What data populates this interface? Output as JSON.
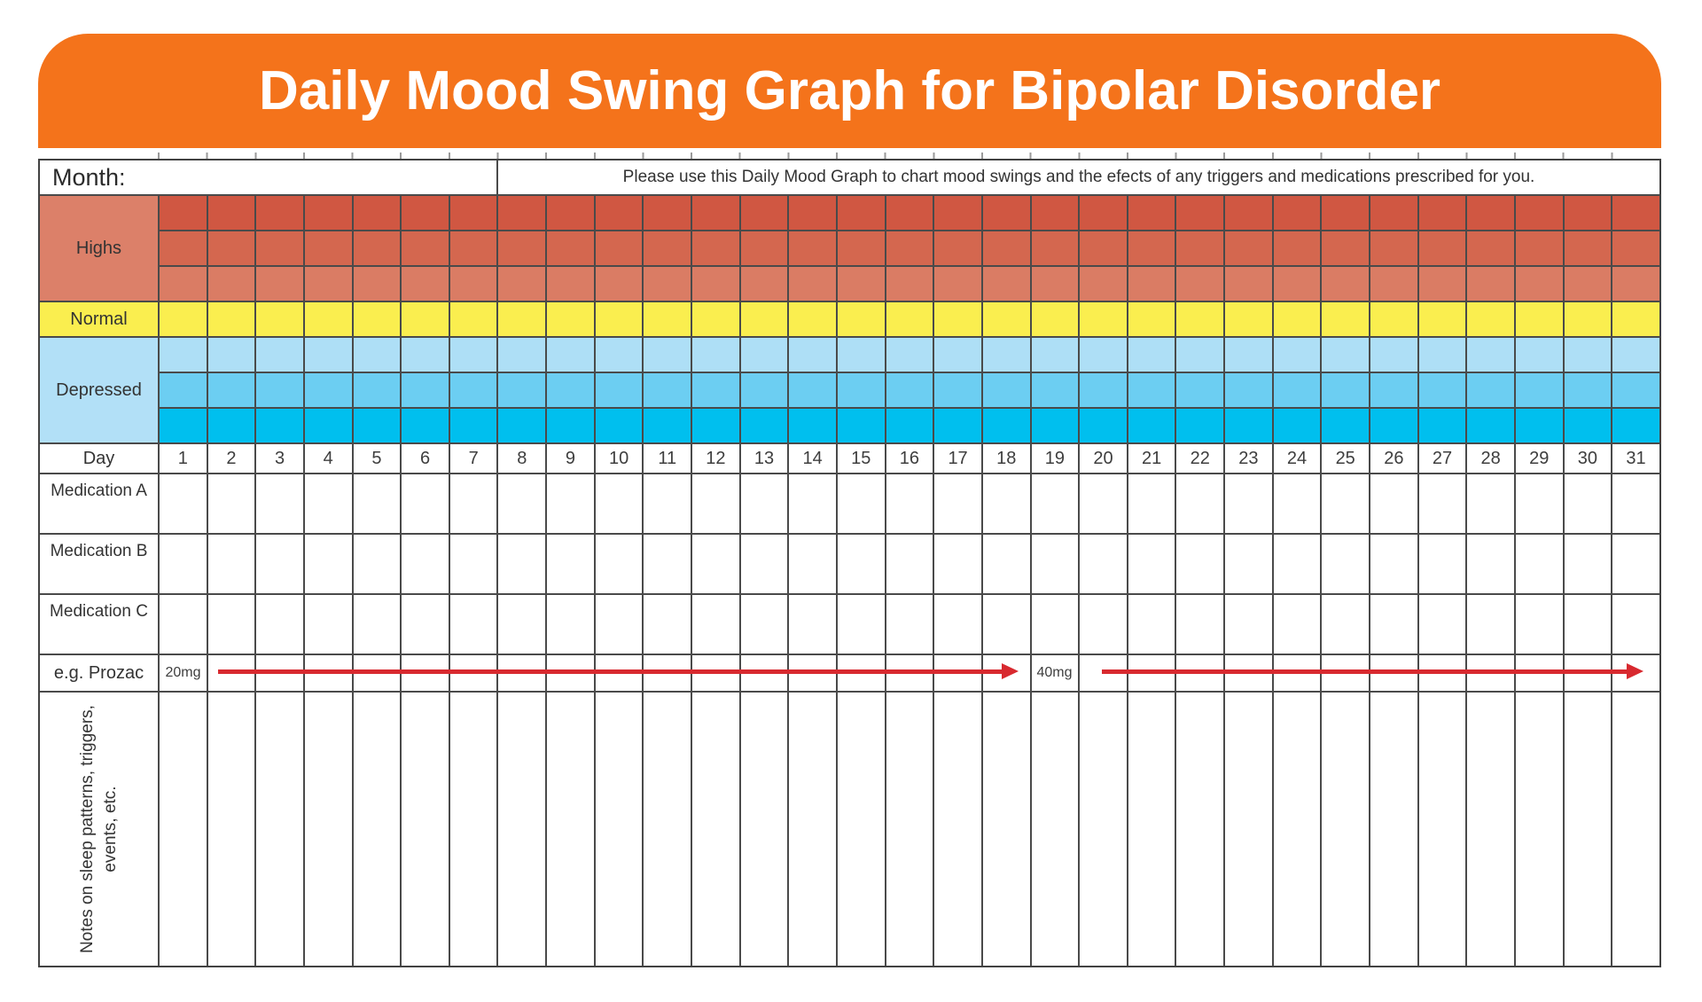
{
  "header": {
    "title": "Daily Mood Swing Graph for Bipolar Disorder"
  },
  "info": {
    "month_label": "Month:",
    "instructions": "Please use this Daily Mood Graph to chart mood swings and the efects of any triggers and medications prescribed for you."
  },
  "mood_sections": [
    {
      "label": "Highs",
      "label_bg": "#DC8069",
      "rows": [
        "#D05742",
        "#D4674F",
        "#DA7C64"
      ]
    },
    {
      "label": "Normal",
      "label_bg": "#FAEE4F",
      "rows": [
        "#FAEE4F"
      ]
    },
    {
      "label": "Depressed",
      "label_bg": "#B2E0F7",
      "rows": [
        "#AEDFF6",
        "#6CCEF2",
        "#00BFEE"
      ]
    }
  ],
  "day_label": "Day",
  "days": [
    "1",
    "2",
    "3",
    "4",
    "5",
    "6",
    "7",
    "8",
    "9",
    "10",
    "11",
    "12",
    "13",
    "14",
    "15",
    "16",
    "17",
    "18",
    "19",
    "20",
    "21",
    "22",
    "23",
    "24",
    "25",
    "26",
    "27",
    "28",
    "29",
    "30",
    "31"
  ],
  "medications": [
    {
      "label": "Medication A"
    },
    {
      "label": "Medication B"
    },
    {
      "label": "Medication C"
    }
  ],
  "example_row": {
    "label": "e.g. Prozac",
    "dose1": "20mg",
    "dose2": "40mg"
  },
  "notes": {
    "line1": "Notes on sleep patterns, triggers,",
    "line2": "events, etc."
  },
  "colors": {
    "banner_orange": "#F4731B",
    "grid_line": "#4A4A4A",
    "arrow_red": "#D8292F",
    "tick_gray": "#9A9A9A"
  }
}
